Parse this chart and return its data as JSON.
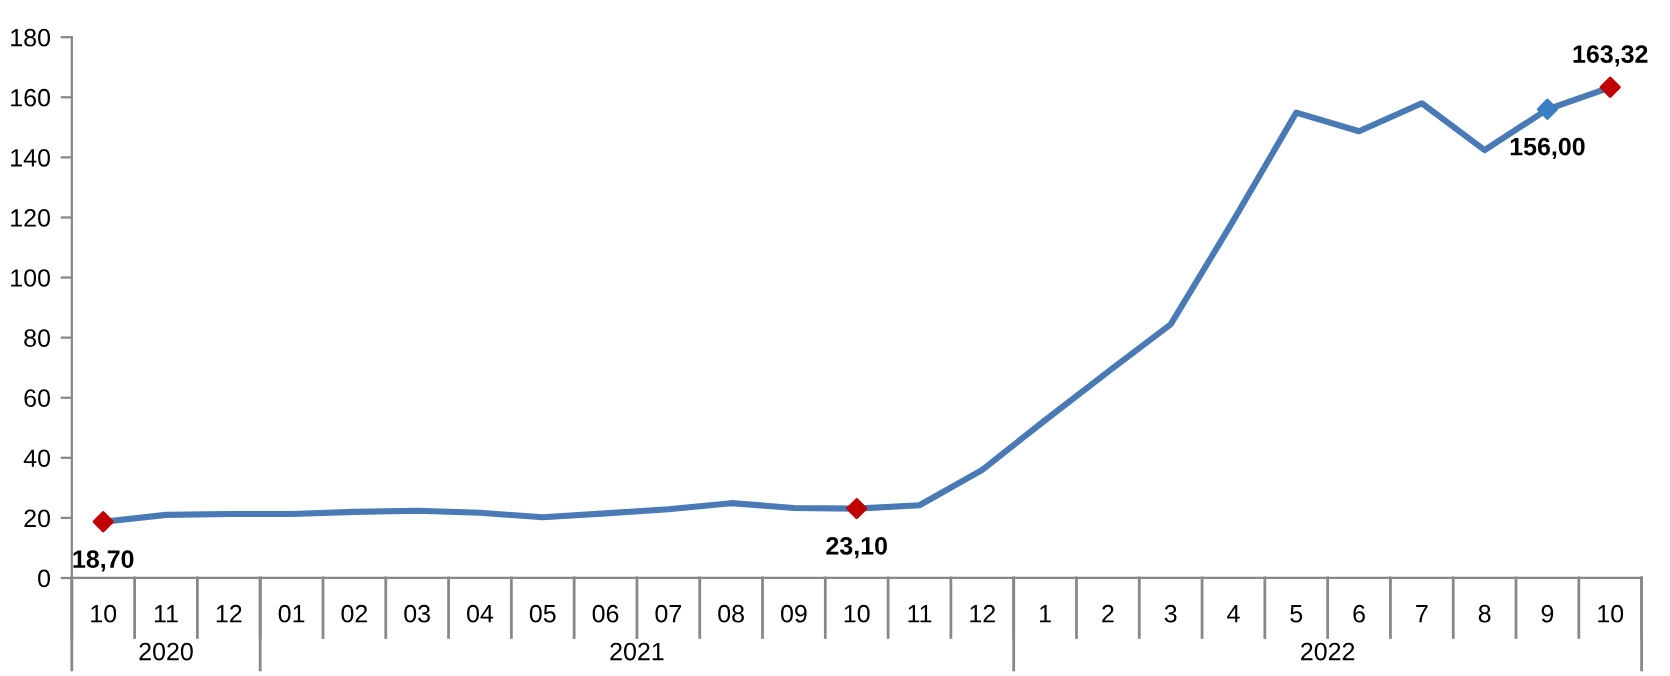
{
  "chart_data": {
    "type": "line",
    "categories": [
      "10",
      "11",
      "12",
      "01",
      "02",
      "03",
      "04",
      "05",
      "06",
      "07",
      "08",
      "09",
      "10",
      "11",
      "12",
      "1",
      "2",
      "3",
      "4",
      "5",
      "6",
      "7",
      "8",
      "9",
      "10"
    ],
    "series": [
      {
        "color": "#4a7ab5",
        "values": [
          18.7,
          21,
          21.3,
          21.3,
          22,
          22.4,
          21.7,
          20.2,
          21.5,
          22.9,
          24.9,
          23.3,
          23.1,
          24.2,
          36,
          52.5,
          68.6,
          84.4,
          119,
          154.9,
          148.7,
          158,
          142.4,
          156.0,
          163.32
        ],
        "colors": [
          "#c00000",
          null,
          null,
          null,
          null,
          null,
          null,
          null,
          null,
          null,
          null,
          null,
          "#c00000",
          null,
          null,
          null,
          null,
          null,
          null,
          null,
          null,
          null,
          null,
          "#3a7fc4",
          "#c00000"
        ],
        "value_labels": [
          "18,70",
          null,
          null,
          null,
          null,
          null,
          null,
          null,
          null,
          null,
          null,
          null,
          "23,10",
          null,
          null,
          null,
          null,
          null,
          null,
          null,
          null,
          null,
          null,
          "156,00",
          "163,32"
        ]
      }
    ],
    "annotations": [
      "2020",
      "2021",
      "2022"
    ],
    "ylim": [
      0,
      180
    ],
    "yticks": [
      0,
      20,
      40,
      60,
      80,
      100,
      120,
      140,
      160,
      180
    ],
    "grid": false,
    "legend": false
  }
}
